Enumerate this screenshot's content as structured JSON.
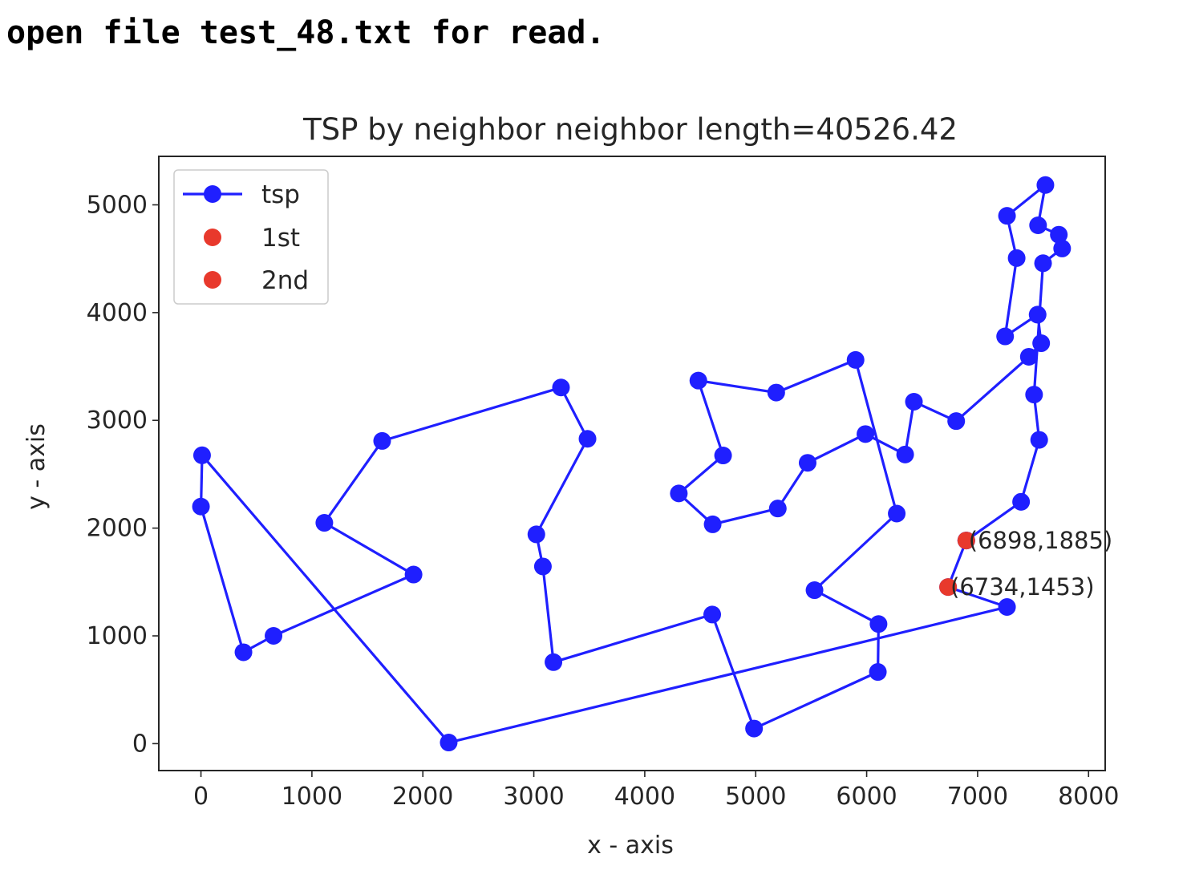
{
  "console": {
    "line": "open file test_48.txt for read."
  },
  "chart_data": {
    "type": "line",
    "title": "TSP by neighbor neighbor length=40526.42",
    "xlabel": "x - axis",
    "ylabel": "y - axis",
    "xlim": [
      -380,
      8150
    ],
    "ylim": [
      -250,
      5450
    ],
    "xticks": [
      0,
      1000,
      2000,
      3000,
      4000,
      5000,
      6000,
      7000,
      8000
    ],
    "yticks": [
      0,
      1000,
      2000,
      3000,
      4000,
      5000
    ],
    "legend": {
      "placement": "upper-left",
      "entries": [
        "tsp",
        "1st",
        "2nd"
      ]
    },
    "colors": {
      "tsp": "#1f1fff",
      "highlight": "#e8392c",
      "frame": "#262626"
    },
    "series": [
      {
        "name": "tsp",
        "points": [
          [
            6898,
            1885
          ],
          [
            6734,
            1453
          ],
          [
            7265,
            1268
          ],
          [
            2233,
            10
          ],
          [
            10,
            2676
          ],
          [
            0,
            2200
          ],
          [
            383,
            848
          ],
          [
            654,
            1000
          ],
          [
            1916,
            1569
          ],
          [
            1112,
            2049
          ],
          [
            1633,
            2809
          ],
          [
            3245,
            3305
          ],
          [
            3484,
            2829
          ],
          [
            3023,
            1942
          ],
          [
            3082,
            1644
          ],
          [
            3177,
            756
          ],
          [
            4608,
            1198
          ],
          [
            4985,
            140
          ],
          [
            6101,
            665
          ],
          [
            6107,
            1110
          ],
          [
            5530,
            1424
          ],
          [
            6271,
            2135
          ],
          [
            5900,
            3561
          ],
          [
            5185,
            3258
          ],
          [
            4483,
            3369
          ],
          [
            4706,
            2674
          ],
          [
            4307,
            2322
          ],
          [
            4612,
            2035
          ],
          [
            5199,
            2182
          ],
          [
            5468,
            2606
          ],
          [
            5989,
            2873
          ],
          [
            6347,
            2683
          ],
          [
            6426,
            3173
          ],
          [
            6807,
            2993
          ],
          [
            7462,
            3590
          ],
          [
            7573,
            3716
          ],
          [
            7541,
            3981
          ],
          [
            7248,
            3779
          ],
          [
            7352,
            4506
          ],
          [
            7265,
            4898
          ],
          [
            7611,
            5184
          ],
          [
            7545,
            4810
          ],
          [
            7732,
            4723
          ],
          [
            7762,
            4595
          ],
          [
            7590,
            4458
          ],
          [
            7509,
            3239
          ],
          [
            7555,
            2819
          ],
          [
            7392,
            2244
          ],
          [
            6898,
            1885
          ]
        ]
      },
      {
        "name": "1st",
        "points": [
          [
            6898,
            1885
          ]
        ]
      },
      {
        "name": "2nd",
        "points": [
          [
            6734,
            1453
          ]
        ]
      }
    ],
    "annotations": [
      "(6898,1885)",
      "(6734,1453)"
    ]
  }
}
